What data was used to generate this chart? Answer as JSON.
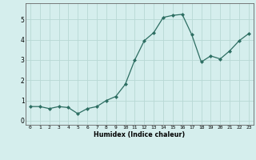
{
  "x": [
    0,
    1,
    2,
    3,
    4,
    5,
    6,
    7,
    8,
    9,
    10,
    11,
    12,
    13,
    14,
    15,
    16,
    17,
    18,
    19,
    20,
    21,
    22,
    23
  ],
  "y": [
    0.7,
    0.7,
    0.6,
    0.7,
    0.65,
    0.35,
    0.6,
    0.7,
    1.0,
    1.2,
    1.8,
    3.0,
    3.95,
    4.35,
    5.1,
    5.2,
    5.25,
    4.25,
    2.9,
    3.2,
    3.05,
    3.45,
    3.95,
    4.3
  ],
  "xlabel": "Humidex (Indice chaleur)",
  "ylim": [
    -0.2,
    5.8
  ],
  "xlim": [
    -0.5,
    23.5
  ],
  "bg_color": "#d5eeed",
  "grid_color": "#b8d8d5",
  "line_color": "#2d6e62",
  "marker_color": "#2d6e62",
  "spine_color": "#666666",
  "yticks": [
    0,
    1,
    2,
    3,
    4,
    5
  ],
  "xticks": [
    0,
    1,
    2,
    3,
    4,
    5,
    6,
    7,
    8,
    9,
    10,
    11,
    12,
    13,
    14,
    15,
    16,
    17,
    18,
    19,
    20,
    21,
    22,
    23
  ],
  "xlabel_fontsize": 5.8,
  "xtick_fontsize": 4.5,
  "ytick_fontsize": 5.5
}
